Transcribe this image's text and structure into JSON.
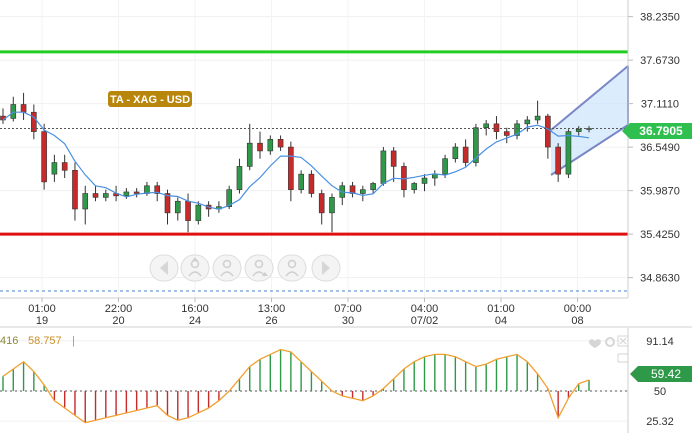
{
  "colors": {
    "up": "#2e9a49",
    "down": "#c62a2a",
    "ma": "#4a90e2",
    "resistance": "#22cc22",
    "support": "#e01010",
    "channel_line": "#7a86c6",
    "channel_fill": "#cfe6fb",
    "price_label_bg": "#2fbf4f",
    "title_badge_bg": "#b8860b",
    "osc_line": "#f0a030"
  },
  "badge": {
    "title": "TA - XAG - USD"
  },
  "price_axis": {
    "ticks": [
      "38.2350",
      "37.6730",
      "37.1110",
      "36.5490",
      "35.9870",
      "35.4250",
      "34.8630"
    ],
    "current_price": "36.7905"
  },
  "time_axis": {
    "ticks": [
      {
        "time": "01:00",
        "date": "19"
      },
      {
        "time": "22:00",
        "date": "20"
      },
      {
        "time": "16:00",
        "date": "24"
      },
      {
        "time": "13:00",
        "date": "26"
      },
      {
        "time": "07:00",
        "date": "30"
      },
      {
        "time": "04:00",
        "date": "07/02"
      },
      {
        "time": "01:00",
        "date": "04"
      },
      {
        "time": "00:00",
        "date": "08"
      }
    ]
  },
  "toolbar": {
    "icons": [
      "chevron-left-icon",
      "person-up-icon",
      "person-plus-icon",
      "person-down-icon",
      "person-refresh-icon",
      "chevron-right-icon"
    ]
  },
  "oscillator": {
    "left_value": "416",
    "value_label": "58.757",
    "current": "59.42",
    "ticks": [
      "91.14",
      "50",
      "25.32"
    ]
  },
  "chart_data": {
    "type": "candlestick",
    "ylim": [
      34.6,
      38.45
    ],
    "resistance": 37.78,
    "support": 35.425,
    "candles": [
      [
        36.95,
        37.05,
        36.85,
        36.9
      ],
      [
        36.92,
        37.2,
        36.88,
        37.1
      ],
      [
        37.1,
        37.25,
        36.9,
        37.0
      ],
      [
        37.0,
        37.1,
        36.65,
        36.75
      ],
      [
        36.75,
        36.85,
        36.0,
        36.1
      ],
      [
        36.2,
        36.45,
        36.1,
        36.35
      ],
      [
        36.35,
        36.45,
        36.15,
        36.25
      ],
      [
        36.25,
        36.35,
        35.6,
        35.75
      ],
      [
        35.75,
        36.05,
        35.55,
        35.95
      ],
      [
        35.95,
        36.05,
        35.85,
        35.9
      ],
      [
        35.9,
        36.0,
        35.85,
        35.95
      ],
      [
        35.95,
        36.05,
        35.85,
        35.92
      ],
      [
        35.92,
        36.02,
        35.88,
        35.97
      ],
      [
        35.97,
        36.02,
        35.9,
        35.95
      ],
      [
        35.95,
        36.1,
        35.92,
        36.05
      ],
      [
        36.05,
        36.1,
        35.85,
        35.95
      ],
      [
        35.95,
        36.0,
        35.55,
        35.7
      ],
      [
        35.7,
        35.9,
        35.6,
        35.85
      ],
      [
        35.85,
        35.95,
        35.45,
        35.6
      ],
      [
        35.6,
        35.85,
        35.55,
        35.8
      ],
      [
        35.8,
        35.85,
        35.65,
        35.75
      ],
      [
        35.75,
        35.85,
        35.7,
        35.78
      ],
      [
        35.78,
        36.05,
        35.75,
        36.0
      ],
      [
        36.0,
        36.4,
        35.95,
        36.3
      ],
      [
        36.3,
        36.85,
        36.25,
        36.6
      ],
      [
        36.6,
        36.75,
        36.4,
        36.5
      ],
      [
        36.5,
        36.7,
        36.45,
        36.65
      ],
      [
        36.65,
        36.7,
        36.5,
        36.55
      ],
      [
        36.55,
        36.62,
        35.85,
        36.0
      ],
      [
        36.0,
        36.25,
        35.95,
        36.2
      ],
      [
        36.2,
        36.25,
        35.9,
        35.95
      ],
      [
        35.95,
        36.0,
        35.55,
        35.7
      ],
      [
        35.7,
        35.95,
        35.45,
        35.9
      ],
      [
        35.9,
        36.1,
        35.8,
        36.05
      ],
      [
        36.05,
        36.1,
        35.9,
        35.95
      ],
      [
        35.95,
        36.05,
        35.85,
        36.0
      ],
      [
        36.0,
        36.1,
        35.95,
        36.08
      ],
      [
        36.08,
        36.55,
        36.05,
        36.5
      ],
      [
        36.5,
        36.55,
        36.1,
        36.3
      ],
      [
        36.3,
        36.35,
        35.9,
        36.0
      ],
      [
        36.0,
        36.1,
        35.95,
        36.08
      ],
      [
        36.08,
        36.2,
        35.98,
        36.15
      ],
      [
        36.15,
        36.25,
        36.05,
        36.2
      ],
      [
        36.2,
        36.45,
        36.15,
        36.4
      ],
      [
        36.4,
        36.6,
        36.35,
        36.55
      ],
      [
        36.55,
        36.65,
        36.3,
        36.35
      ],
      [
        36.35,
        36.85,
        36.3,
        36.8
      ],
      [
        36.8,
        36.9,
        36.7,
        36.85
      ],
      [
        36.85,
        36.95,
        36.65,
        36.75
      ],
      [
        36.75,
        36.8,
        36.6,
        36.7
      ],
      [
        36.7,
        36.9,
        36.65,
        36.85
      ],
      [
        36.85,
        36.95,
        36.75,
        36.9
      ],
      [
        36.9,
        37.15,
        36.85,
        36.95
      ],
      [
        36.95,
        36.98,
        36.4,
        36.55
      ],
      [
        36.55,
        36.6,
        36.1,
        36.2
      ],
      [
        36.2,
        36.78,
        36.15,
        36.75
      ],
      [
        36.75,
        36.82,
        36.7,
        36.78
      ],
      [
        36.78,
        36.82,
        36.74,
        36.79
      ]
    ],
    "oscillator": {
      "type": "histogram",
      "baseline": 50,
      "ylim": [
        18,
        100
      ],
      "values": [
        62,
        68,
        74,
        66,
        55,
        42,
        36,
        30,
        24,
        26,
        28,
        30,
        32,
        34,
        36,
        38,
        30,
        26,
        28,
        32,
        36,
        42,
        50,
        60,
        70,
        76,
        80,
        84,
        82,
        74,
        66,
        58,
        50,
        46,
        44,
        42,
        46,
        52,
        60,
        68,
        74,
        78,
        80,
        80,
        78,
        74,
        70,
        72,
        76,
        78,
        80,
        74,
        64,
        52,
        28,
        44,
        56,
        59
      ]
    }
  }
}
